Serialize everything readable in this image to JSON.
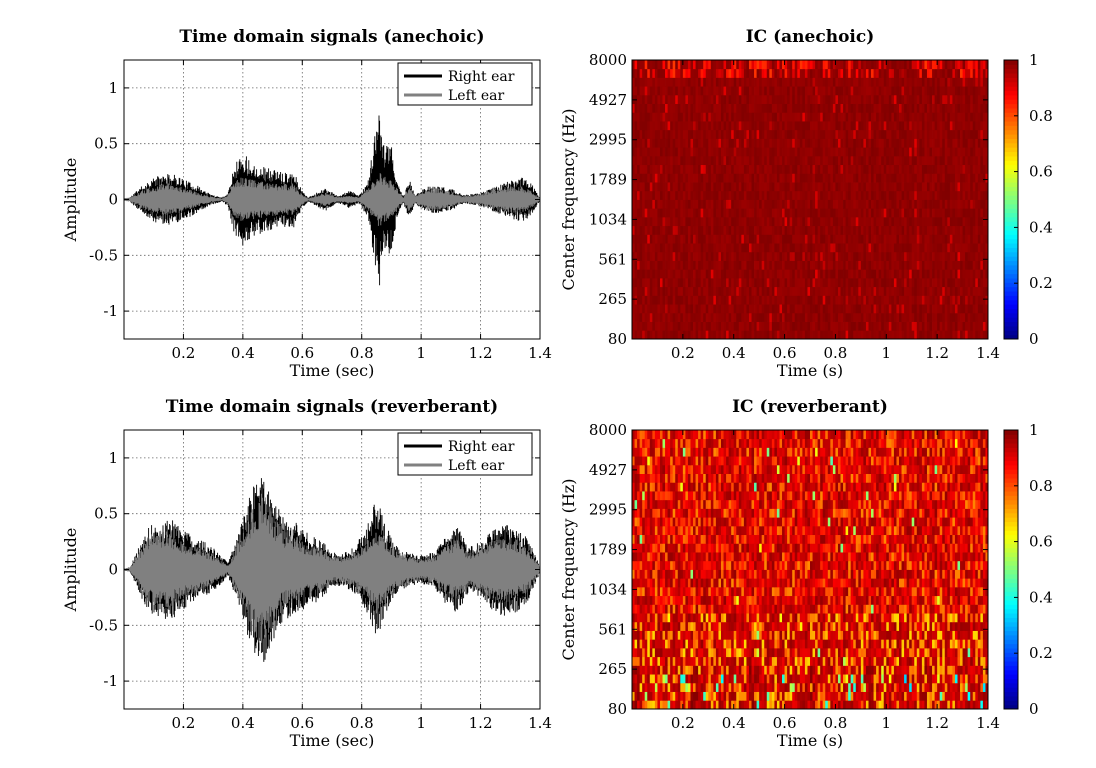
{
  "colors": {
    "right_ear": "#000000",
    "left_ear": "#808080",
    "grid": "#666666",
    "colormap": "jet"
  },
  "chart_data": [
    {
      "type": "line",
      "title": "Time domain signals (anechoic)",
      "xlabel": "Time (sec)",
      "ylabel": "Amplitude",
      "xlim": [
        0,
        1.4
      ],
      "ylim": [
        -1.25,
        1.25
      ],
      "xticks": [
        "0.2",
        "0.4",
        "0.6",
        "0.8",
        "1",
        "1.2",
        "1.4"
      ],
      "xtick_values": [
        0.2,
        0.4,
        0.6,
        0.8,
        1.0,
        1.2,
        1.4
      ],
      "yticks": [
        "-1",
        "-0.5",
        "0",
        "0.5",
        "1"
      ],
      "ytick_values": [
        -1,
        -0.5,
        0,
        0.5,
        1
      ],
      "grid": true,
      "legend": "top-right",
      "series": [
        {
          "name": "Right ear",
          "color": "#000000",
          "t": [
            0.0,
            0.02,
            0.05,
            0.06,
            0.1,
            0.14,
            0.18,
            0.21,
            0.25,
            0.29,
            0.33,
            0.35,
            0.37,
            0.4,
            0.44,
            0.49,
            0.53,
            0.57,
            0.6,
            0.62,
            0.66,
            0.68,
            0.72,
            0.76,
            0.79,
            0.82,
            0.84,
            0.86,
            0.87,
            0.9,
            0.92,
            0.94,
            0.96,
            0.98,
            1.02,
            1.06,
            1.1,
            1.14,
            1.18,
            1.22,
            1.26,
            1.3,
            1.34,
            1.37,
            1.4
          ],
          "env": [
            0.01,
            0.02,
            0.1,
            0.12,
            0.2,
            0.23,
            0.22,
            0.17,
            0.12,
            0.05,
            0.02,
            0.06,
            0.32,
            0.42,
            0.33,
            0.28,
            0.25,
            0.26,
            0.08,
            0.02,
            0.08,
            0.1,
            0.03,
            0.08,
            0.04,
            0.15,
            0.52,
            0.78,
            0.5,
            0.48,
            0.15,
            0.03,
            0.18,
            0.04,
            0.12,
            0.12,
            0.1,
            0.04,
            0.05,
            0.08,
            0.13,
            0.17,
            0.2,
            0.15,
            0.01
          ]
        },
        {
          "name": "Left ear",
          "color": "#808080",
          "t": [
            0.0,
            0.02,
            0.05,
            0.06,
            0.1,
            0.14,
            0.18,
            0.21,
            0.25,
            0.29,
            0.33,
            0.35,
            0.37,
            0.4,
            0.44,
            0.49,
            0.53,
            0.57,
            0.6,
            0.62,
            0.66,
            0.68,
            0.72,
            0.76,
            0.79,
            0.82,
            0.84,
            0.86,
            0.87,
            0.9,
            0.92,
            0.94,
            0.96,
            0.98,
            1.02,
            1.06,
            1.1,
            1.14,
            1.18,
            1.22,
            1.26,
            1.3,
            1.34,
            1.37,
            1.4
          ],
          "env": [
            0.01,
            0.02,
            0.06,
            0.08,
            0.12,
            0.15,
            0.13,
            0.1,
            0.06,
            0.03,
            0.01,
            0.04,
            0.18,
            0.2,
            0.18,
            0.15,
            0.14,
            0.15,
            0.05,
            0.01,
            0.05,
            0.06,
            0.02,
            0.04,
            0.02,
            0.1,
            0.18,
            0.25,
            0.22,
            0.18,
            0.1,
            0.02,
            0.12,
            0.03,
            0.1,
            0.1,
            0.07,
            0.03,
            0.04,
            0.07,
            0.1,
            0.12,
            0.12,
            0.08,
            0.01
          ]
        }
      ]
    },
    {
      "type": "heatmap",
      "title": "IC (anechoic)",
      "xlabel": "Time (s)",
      "ylabel": "Center frequency (Hz)",
      "xlim": [
        0,
        1.4
      ],
      "xticks": [
        "0.2",
        "0.4",
        "0.6",
        "0.8",
        "1",
        "1.2",
        "1.4"
      ],
      "yticks": [
        "80",
        "265",
        "561",
        "1034",
        "1789",
        "2995",
        "4927",
        "8000"
      ],
      "n_time_frames": 140,
      "n_channels": 32,
      "clim": [
        0,
        1
      ],
      "colorbar_ticks": [
        "0",
        "0.2",
        "0.4",
        "0.6",
        "0.8",
        "1"
      ],
      "colormap": "jet"
    },
    {
      "type": "line",
      "title": "Time domain signals (reverberant)",
      "xlabel": "Time (sec)",
      "ylabel": "Amplitude",
      "xlim": [
        0,
        1.4
      ],
      "ylim": [
        -1.25,
        1.25
      ],
      "xticks": [
        "0.2",
        "0.4",
        "0.6",
        "0.8",
        "1",
        "1.2",
        "1.4"
      ],
      "xtick_values": [
        0.2,
        0.4,
        0.6,
        0.8,
        1.0,
        1.2,
        1.4
      ],
      "yticks": [
        "-1",
        "-0.5",
        "0",
        "0.5",
        "1"
      ],
      "ytick_values": [
        -1,
        -0.5,
        0,
        0.5,
        1
      ],
      "grid": true,
      "legend": "top-right",
      "series": [
        {
          "name": "Right ear",
          "color": "#000000",
          "t": [
            0.0,
            0.02,
            0.05,
            0.08,
            0.12,
            0.16,
            0.19,
            0.23,
            0.27,
            0.31,
            0.35,
            0.38,
            0.4,
            0.44,
            0.47,
            0.5,
            0.54,
            0.58,
            0.62,
            0.66,
            0.7,
            0.74,
            0.78,
            0.82,
            0.85,
            0.88,
            0.92,
            0.96,
            1.0,
            1.04,
            1.08,
            1.12,
            1.16,
            1.2,
            1.24,
            1.28,
            1.32,
            1.36,
            1.4
          ],
          "env": [
            0.01,
            0.02,
            0.2,
            0.38,
            0.45,
            0.45,
            0.38,
            0.3,
            0.25,
            0.18,
            0.06,
            0.28,
            0.45,
            0.8,
            0.85,
            0.65,
            0.45,
            0.42,
            0.32,
            0.28,
            0.15,
            0.15,
            0.22,
            0.4,
            0.65,
            0.4,
            0.2,
            0.15,
            0.13,
            0.15,
            0.3,
            0.4,
            0.2,
            0.25,
            0.38,
            0.42,
            0.4,
            0.28,
            0.03
          ]
        },
        {
          "name": "Left ear",
          "color": "#808080",
          "t": [
            0.0,
            0.02,
            0.05,
            0.08,
            0.12,
            0.16,
            0.19,
            0.23,
            0.27,
            0.31,
            0.35,
            0.38,
            0.4,
            0.44,
            0.47,
            0.5,
            0.54,
            0.58,
            0.62,
            0.66,
            0.7,
            0.74,
            0.78,
            0.82,
            0.85,
            0.88,
            0.92,
            0.96,
            1.0,
            1.04,
            1.08,
            1.12,
            1.16,
            1.2,
            1.24,
            1.28,
            1.32,
            1.36,
            1.4
          ],
          "env": [
            0.01,
            0.02,
            0.16,
            0.3,
            0.35,
            0.34,
            0.28,
            0.22,
            0.18,
            0.12,
            0.04,
            0.22,
            0.35,
            0.6,
            0.72,
            0.5,
            0.34,
            0.3,
            0.22,
            0.2,
            0.12,
            0.12,
            0.16,
            0.28,
            0.4,
            0.3,
            0.16,
            0.12,
            0.1,
            0.12,
            0.22,
            0.28,
            0.16,
            0.2,
            0.28,
            0.3,
            0.28,
            0.2,
            0.02
          ]
        }
      ]
    },
    {
      "type": "heatmap",
      "title": "IC (reverberant)",
      "xlabel": "Time (s)",
      "ylabel": "Center frequency (Hz)",
      "xlim": [
        0,
        1.4
      ],
      "xticks": [
        "0.2",
        "0.4",
        "0.6",
        "0.8",
        "1",
        "1.2",
        "1.4"
      ],
      "yticks": [
        "80",
        "265",
        "561",
        "1034",
        "1789",
        "2995",
        "4927",
        "8000"
      ],
      "n_time_frames": 140,
      "n_channels": 32,
      "clim": [
        0,
        1
      ],
      "colorbar_ticks": [
        "0",
        "0.2",
        "0.4",
        "0.6",
        "0.8",
        "1"
      ],
      "colormap": "jet"
    }
  ]
}
